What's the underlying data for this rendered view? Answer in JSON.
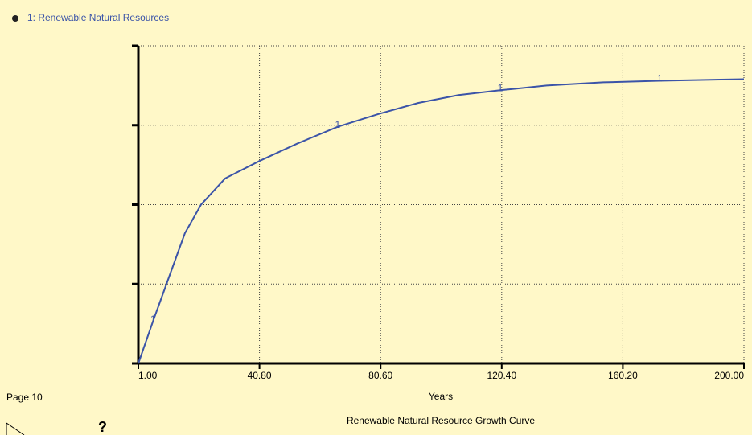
{
  "chart_data": {
    "type": "line",
    "title": "Renewable Natural Resource Growth Curve",
    "xlabel": "Years",
    "page_label": "Page 10",
    "help_icon": "?",
    "line_marker": "1",
    "x": [
      1,
      5.8,
      11,
      16.3,
      21.6,
      29.5,
      40.8,
      53.3,
      66.5,
      79.8,
      92.9,
      106.2,
      119.9,
      135.2,
      153.8,
      172.3,
      200
    ],
    "series": [
      {
        "name": "1: Renewable  Natural Resources",
        "color": "#3b54a8",
        "values": [
          0,
          0.53,
          1.08,
          1.64,
          2.0,
          2.33,
          2.55,
          2.77,
          2.98,
          3.14,
          3.28,
          3.38,
          3.44,
          3.5,
          3.54,
          3.56,
          3.58
        ]
      }
    ],
    "xlim": [
      1,
      200
    ],
    "xticks": [
      {
        "value": 1,
        "label": "1.00"
      },
      {
        "value": 40.8,
        "label": "40.80"
      },
      {
        "value": 80.6,
        "label": "80.60"
      },
      {
        "value": 120.4,
        "label": "120.40"
      },
      {
        "value": 160.2,
        "label": "160.20"
      },
      {
        "value": 200,
        "label": "200.00"
      }
    ],
    "ylim": [
      0,
      4
    ],
    "yticks": [
      0,
      1,
      2,
      3,
      4
    ],
    "grid": true
  }
}
